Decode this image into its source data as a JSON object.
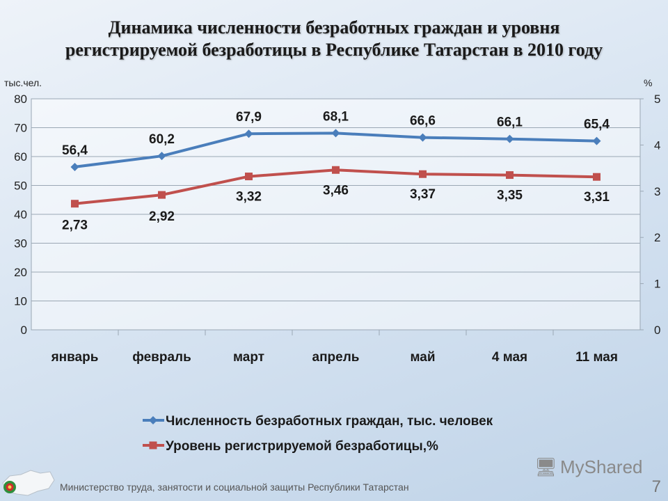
{
  "title_line1": "Динамика численности безработных граждан и уровня",
  "title_line2": "регистрируемой безработицы в Республике Татарстан в 2010 году",
  "footer": "Министерство труда, занятости и социальной защиты Республики Татарстан",
  "page_number": "7",
  "watermark": "MyShared",
  "chart_data": {
    "type": "line",
    "categories": [
      "январь",
      "февраль",
      "март",
      "апрель",
      "май",
      "4 мая",
      "11 мая"
    ],
    "left_axis": {
      "unit_label": "тыс.чел.",
      "range": [
        0,
        80
      ],
      "ticks": [
        "0",
        "10",
        "20",
        "30",
        "40",
        "50",
        "60",
        "70",
        "80"
      ]
    },
    "right_axis": {
      "unit_label": "%",
      "range": [
        0,
        5
      ],
      "ticks": [
        "0",
        "1",
        "2",
        "3",
        "4",
        "5"
      ]
    },
    "series": [
      {
        "name": "Численность безработных граждан, тыс. человек",
        "axis": "left",
        "color": "#4a7ebb",
        "values": [
          56.4,
          60.2,
          67.9,
          68.1,
          66.6,
          66.1,
          65.4
        ],
        "labels": [
          "56,4",
          "60,2",
          "67,9",
          "68,1",
          "66,6",
          "66,1",
          "65,4"
        ],
        "marker": "diamond"
      },
      {
        "name": "Уровень регистрируемой безработицы,%",
        "axis": "right",
        "color": "#c0504d",
        "values": [
          2.73,
          2.92,
          3.32,
          3.46,
          3.37,
          3.35,
          3.31
        ],
        "labels": [
          "2,73",
          "2,92",
          "3,32",
          "3,46",
          "3,37",
          "3,35",
          "3,31"
        ],
        "marker": "square"
      }
    ],
    "grid": true,
    "legend_position": "bottom"
  }
}
